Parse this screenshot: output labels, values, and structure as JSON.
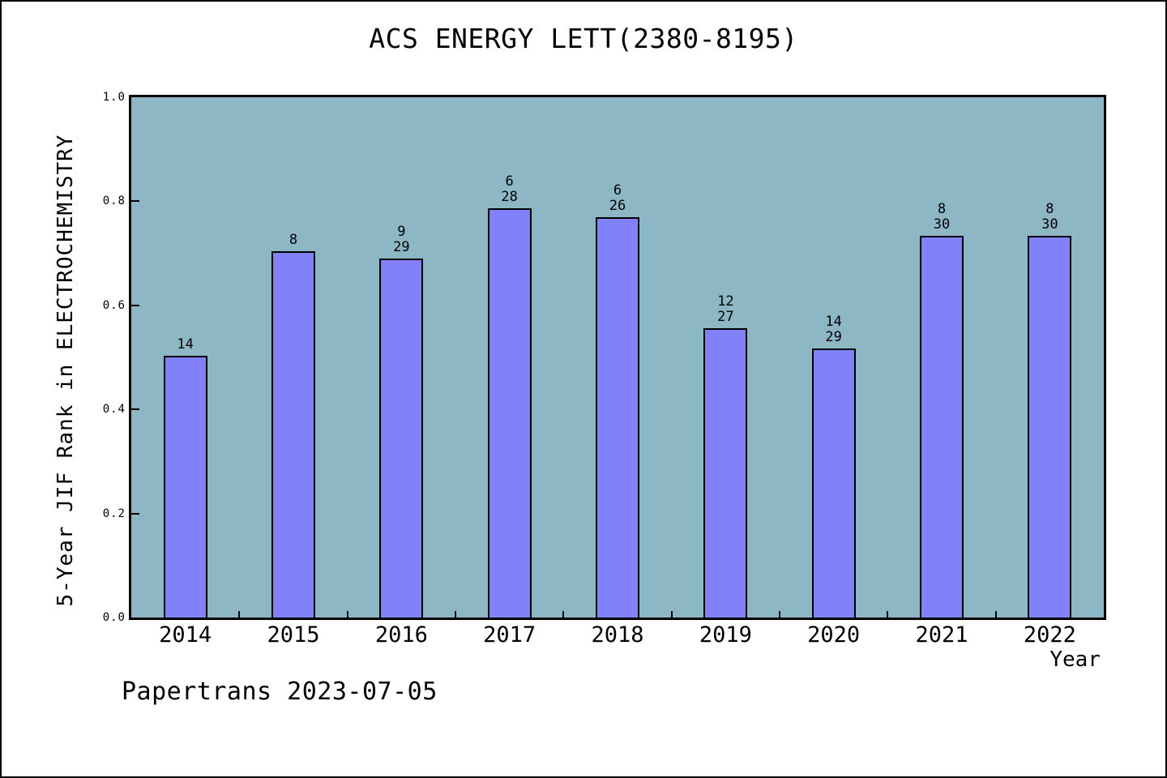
{
  "footer": {
    "watermark": "Papertrans 2023-07-05"
  },
  "chart_data": {
    "type": "bar",
    "title": "ACS ENERGY LETT(2380-8195)",
    "xlabel": "Year",
    "ylabel": "5-Year JIF Rank in ELECTROCHEMISTRY",
    "ylim": [
      0.0,
      1.0
    ],
    "ytick_labels": [
      "0.0",
      "0.2",
      "0.4",
      "0.6",
      "0.8",
      "1.0"
    ],
    "grid": false,
    "legend_position": "none",
    "categories": [
      "2014",
      "2015",
      "2016",
      "2017",
      "2018",
      "2019",
      "2020",
      "2021",
      "2022"
    ],
    "values": [
      0.503,
      0.704,
      0.69,
      0.786,
      0.769,
      0.556,
      0.517,
      0.733,
      0.733
    ],
    "bar_labels": [
      [
        "14"
      ],
      [
        "8"
      ],
      [
        "9",
        "29"
      ],
      [
        "6",
        "28"
      ],
      [
        "6",
        "26"
      ],
      [
        "12",
        "27"
      ],
      [
        "14",
        "29"
      ],
      [
        "8",
        "30"
      ],
      [
        "8",
        "30"
      ]
    ],
    "colors": {
      "bar_fill": "#8181fa",
      "bar_edge": "#000000",
      "plot_background": "#8db7c5",
      "figure_background": "#ffffff",
      "text": "#000000"
    }
  }
}
